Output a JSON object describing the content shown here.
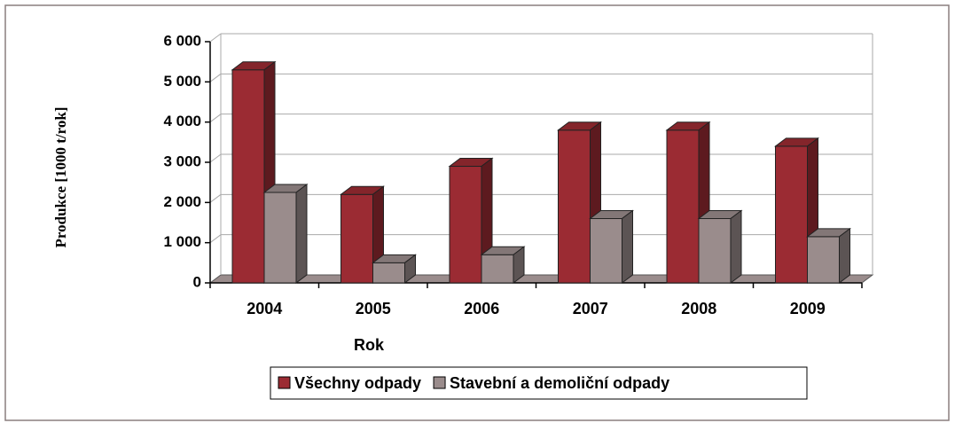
{
  "chart_data": {
    "type": "bar3d",
    "x_label": "Rok",
    "y_label": "Produkce [1000 t/rok]",
    "categories": [
      "2004",
      "2005",
      "2006",
      "2007",
      "2008",
      "2009"
    ],
    "series": [
      {
        "name": "Všechny odpady",
        "color": "#9b2b33",
        "values": [
          5300,
          2200,
          2900,
          3800,
          3800,
          3400
        ]
      },
      {
        "name": "Stavební a demoliční odpady",
        "color": "#9a8c8c",
        "values": [
          2250,
          500,
          700,
          1600,
          1600,
          1150
        ]
      }
    ],
    "ylim": [
      0,
      6000
    ],
    "yticks": [
      0,
      {
        "value": 1000,
        "label": "1 000"
      },
      {
        "value": 2000,
        "label": "2 000"
      },
      {
        "value": 3000,
        "label": "3 000"
      },
      {
        "value": 4000,
        "label": "4 000"
      },
      {
        "value": 5000,
        "label": "5 000"
      },
      {
        "value": 6000,
        "label": "6 000"
      }
    ],
    "grid": true,
    "legend": "bottom"
  }
}
